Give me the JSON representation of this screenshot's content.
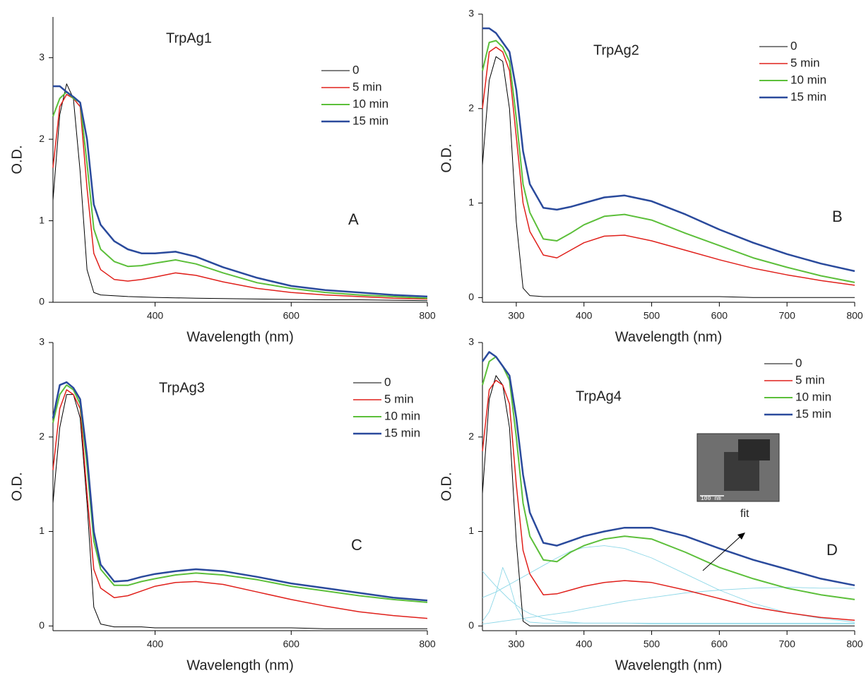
{
  "chart_data": [
    {
      "type": "line",
      "title": "TrpAg1",
      "annotations": [
        "A"
      ],
      "x_label": "Wavelength (nm)",
      "y_label": "O.D.",
      "x": [
        250,
        260,
        270,
        280,
        290,
        300,
        310,
        320,
        340,
        360,
        380,
        400,
        430,
        460,
        500,
        550,
        600,
        650,
        700,
        750,
        800
      ],
      "xlim": [
        250,
        800
      ],
      "xticks": [
        400,
        600,
        800
      ],
      "ylim": [
        0,
        3.5
      ],
      "yticks": [
        0,
        1,
        2,
        3
      ],
      "series": [
        {
          "name": "0",
          "color": "#000000",
          "values": [
            1.25,
            2.3,
            2.68,
            2.5,
            1.6,
            0.4,
            0.12,
            0.09,
            0.08,
            0.07,
            0.065,
            0.06,
            0.055,
            0.05,
            0.045,
            0.04,
            0.035,
            0.03,
            0.03,
            0.025,
            0.02
          ]
        },
        {
          "name": "5 min",
          "color": "#e0201b",
          "values": [
            1.65,
            2.4,
            2.55,
            2.5,
            2.4,
            1.4,
            0.6,
            0.4,
            0.28,
            0.26,
            0.28,
            0.31,
            0.36,
            0.33,
            0.25,
            0.17,
            0.12,
            0.09,
            0.07,
            0.05,
            0.04
          ]
        },
        {
          "name": "10 min",
          "color": "#5cbf3a",
          "values": [
            2.28,
            2.5,
            2.58,
            2.5,
            2.45,
            1.7,
            0.9,
            0.65,
            0.5,
            0.44,
            0.45,
            0.48,
            0.52,
            0.47,
            0.36,
            0.24,
            0.17,
            0.12,
            0.09,
            0.07,
            0.05
          ]
        },
        {
          "name": "15 min",
          "color": "#2a4a9c",
          "values": [
            2.65,
            2.65,
            2.58,
            2.52,
            2.45,
            2.0,
            1.2,
            0.95,
            0.75,
            0.65,
            0.6,
            0.6,
            0.62,
            0.56,
            0.43,
            0.3,
            0.2,
            0.15,
            0.12,
            0.09,
            0.07
          ]
        }
      ]
    },
    {
      "type": "line",
      "title": "TrpAg2",
      "annotations": [
        "B"
      ],
      "x_label": "Wavelength (nm)",
      "y_label": "O.D.",
      "x": [
        250,
        260,
        270,
        280,
        290,
        300,
        310,
        320,
        340,
        360,
        380,
        400,
        430,
        460,
        500,
        550,
        600,
        650,
        700,
        750,
        800
      ],
      "xlim": [
        250,
        800
      ],
      "xticks": [
        300,
        400,
        500,
        600,
        700,
        800
      ],
      "ylim": [
        -0.05,
        3
      ],
      "yticks": [
        0,
        1,
        2,
        3
      ],
      "series": [
        {
          "name": "0",
          "color": "#000000",
          "values": [
            1.4,
            2.3,
            2.55,
            2.5,
            2.0,
            0.8,
            0.1,
            0.02,
            0.01,
            0.01,
            0.01,
            0.01,
            0.01,
            0.01,
            0.01,
            0.01,
            0.01,
            0,
            0,
            0,
            0
          ]
        },
        {
          "name": "5 min",
          "color": "#e0201b",
          "values": [
            2.0,
            2.6,
            2.65,
            2.6,
            2.4,
            1.7,
            1.0,
            0.7,
            0.45,
            0.42,
            0.5,
            0.58,
            0.65,
            0.66,
            0.6,
            0.5,
            0.4,
            0.31,
            0.24,
            0.18,
            0.13
          ]
        },
        {
          "name": "10 min",
          "color": "#5cbf3a",
          "values": [
            2.4,
            2.7,
            2.72,
            2.65,
            2.5,
            1.9,
            1.2,
            0.9,
            0.62,
            0.6,
            0.68,
            0.77,
            0.86,
            0.88,
            0.82,
            0.68,
            0.55,
            0.42,
            0.32,
            0.23,
            0.16
          ]
        },
        {
          "name": "15 min",
          "color": "#2a4a9c",
          "values": [
            2.85,
            2.85,
            2.8,
            2.7,
            2.6,
            2.2,
            1.55,
            1.2,
            0.95,
            0.93,
            0.96,
            1.0,
            1.06,
            1.08,
            1.02,
            0.88,
            0.72,
            0.58,
            0.46,
            0.36,
            0.28
          ]
        }
      ]
    },
    {
      "type": "line",
      "title": "TrpAg3",
      "annotations": [
        "C"
      ],
      "x_label": "Wavelength (nm)",
      "y_label": "O.D.",
      "x": [
        250,
        260,
        270,
        280,
        290,
        300,
        310,
        320,
        340,
        360,
        380,
        400,
        430,
        460,
        500,
        550,
        600,
        650,
        700,
        750,
        800
      ],
      "xlim": [
        250,
        800
      ],
      "xticks": [
        400,
        600,
        800
      ],
      "ylim": [
        -0.05,
        3
      ],
      "yticks": [
        0,
        1,
        2,
        3
      ],
      "series": [
        {
          "name": "0",
          "color": "#000000",
          "values": [
            1.3,
            2.1,
            2.45,
            2.45,
            2.2,
            1.3,
            0.2,
            0.02,
            -0.01,
            -0.01,
            -0.01,
            -0.02,
            -0.02,
            -0.02,
            -0.02,
            -0.02,
            -0.02,
            -0.03,
            -0.03,
            -0.03,
            -0.03
          ]
        },
        {
          "name": "5 min",
          "color": "#e0201b",
          "values": [
            1.65,
            2.3,
            2.5,
            2.45,
            2.3,
            1.4,
            0.6,
            0.4,
            0.3,
            0.32,
            0.37,
            0.42,
            0.46,
            0.47,
            0.44,
            0.36,
            0.28,
            0.21,
            0.15,
            0.11,
            0.08
          ]
        },
        {
          "name": "10 min",
          "color": "#5cbf3a",
          "values": [
            2.15,
            2.45,
            2.55,
            2.5,
            2.35,
            1.7,
            0.9,
            0.6,
            0.43,
            0.43,
            0.47,
            0.5,
            0.54,
            0.56,
            0.54,
            0.49,
            0.42,
            0.37,
            0.32,
            0.28,
            0.25
          ]
        },
        {
          "name": "15 min",
          "color": "#2a4a9c",
          "values": [
            2.2,
            2.55,
            2.58,
            2.52,
            2.4,
            1.8,
            1.0,
            0.65,
            0.47,
            0.48,
            0.52,
            0.55,
            0.58,
            0.6,
            0.58,
            0.52,
            0.45,
            0.4,
            0.35,
            0.3,
            0.27
          ]
        }
      ]
    },
    {
      "type": "line",
      "title": "TrpAg4",
      "annotations": [
        "D",
        "fit"
      ],
      "inset_label": "100 nm",
      "x_label": "Wavelength (nm)",
      "y_label": "O.D.",
      "x": [
        250,
        260,
        270,
        280,
        290,
        300,
        310,
        320,
        340,
        360,
        380,
        400,
        430,
        460,
        500,
        550,
        600,
        650,
        700,
        750,
        800
      ],
      "xlim": [
        250,
        800
      ],
      "xticks": [
        300,
        400,
        500,
        600,
        700,
        800
      ],
      "ylim": [
        -0.05,
        3
      ],
      "yticks": [
        0,
        1,
        2,
        3
      ],
      "series": [
        {
          "name": "0",
          "color": "#000000",
          "values": [
            1.4,
            2.4,
            2.65,
            2.55,
            2.1,
            0.9,
            0.05,
            0,
            0,
            0,
            0,
            0,
            0,
            0,
            0,
            0,
            0,
            0,
            0,
            0,
            0
          ]
        },
        {
          "name": "5 min",
          "color": "#e0201b",
          "values": [
            1.85,
            2.5,
            2.6,
            2.55,
            2.35,
            1.5,
            0.8,
            0.55,
            0.33,
            0.34,
            0.38,
            0.42,
            0.46,
            0.48,
            0.46,
            0.38,
            0.29,
            0.2,
            0.14,
            0.09,
            0.06
          ]
        },
        {
          "name": "10 min",
          "color": "#5cbf3a",
          "values": [
            2.55,
            2.8,
            2.85,
            2.75,
            2.6,
            2.0,
            1.3,
            0.95,
            0.7,
            0.68,
            0.78,
            0.85,
            0.92,
            0.95,
            0.92,
            0.78,
            0.62,
            0.5,
            0.4,
            0.33,
            0.28
          ]
        },
        {
          "name": "15 min",
          "color": "#2a4a9c",
          "values": [
            2.8,
            2.9,
            2.85,
            2.75,
            2.65,
            2.2,
            1.6,
            1.2,
            0.88,
            0.85,
            0.9,
            0.95,
            1.0,
            1.04,
            1.04,
            0.95,
            0.82,
            0.7,
            0.6,
            0.5,
            0.43
          ]
        },
        {
          "color": "#8fd8e8",
          "values": [
            0.05,
            0.15,
            0.35,
            0.62,
            0.45,
            0.2,
            0.08,
            0.04,
            0.03,
            0.03,
            0.03,
            0.03,
            0.03,
            0.03,
            0.03,
            0.03,
            0.03,
            0.03,
            0.03,
            0.03,
            0.03
          ]
        },
        {
          "color": "#8fd8e8",
          "values": [
            0.3,
            0.33,
            0.36,
            0.4,
            0.44,
            0.48,
            0.52,
            0.56,
            0.64,
            0.72,
            0.79,
            0.83,
            0.85,
            0.82,
            0.72,
            0.55,
            0.38,
            0.24,
            0.14,
            0.08,
            0.04
          ]
        },
        {
          "color": "#8fd8e8",
          "values": [
            0.58,
            0.5,
            0.42,
            0.35,
            0.28,
            0.22,
            0.17,
            0.13,
            0.08,
            0.05,
            0.04,
            0.03,
            0.03,
            0.03,
            0.02,
            0.02,
            0.02,
            0.02,
            0.02,
            0.02,
            0.02
          ]
        },
        {
          "color": "#8fd8e8",
          "values": [
            0.02,
            0.03,
            0.04,
            0.05,
            0.06,
            0.07,
            0.08,
            0.09,
            0.11,
            0.13,
            0.15,
            0.18,
            0.22,
            0.26,
            0.3,
            0.35,
            0.38,
            0.4,
            0.41,
            0.4,
            0.4
          ]
        }
      ]
    }
  ]
}
